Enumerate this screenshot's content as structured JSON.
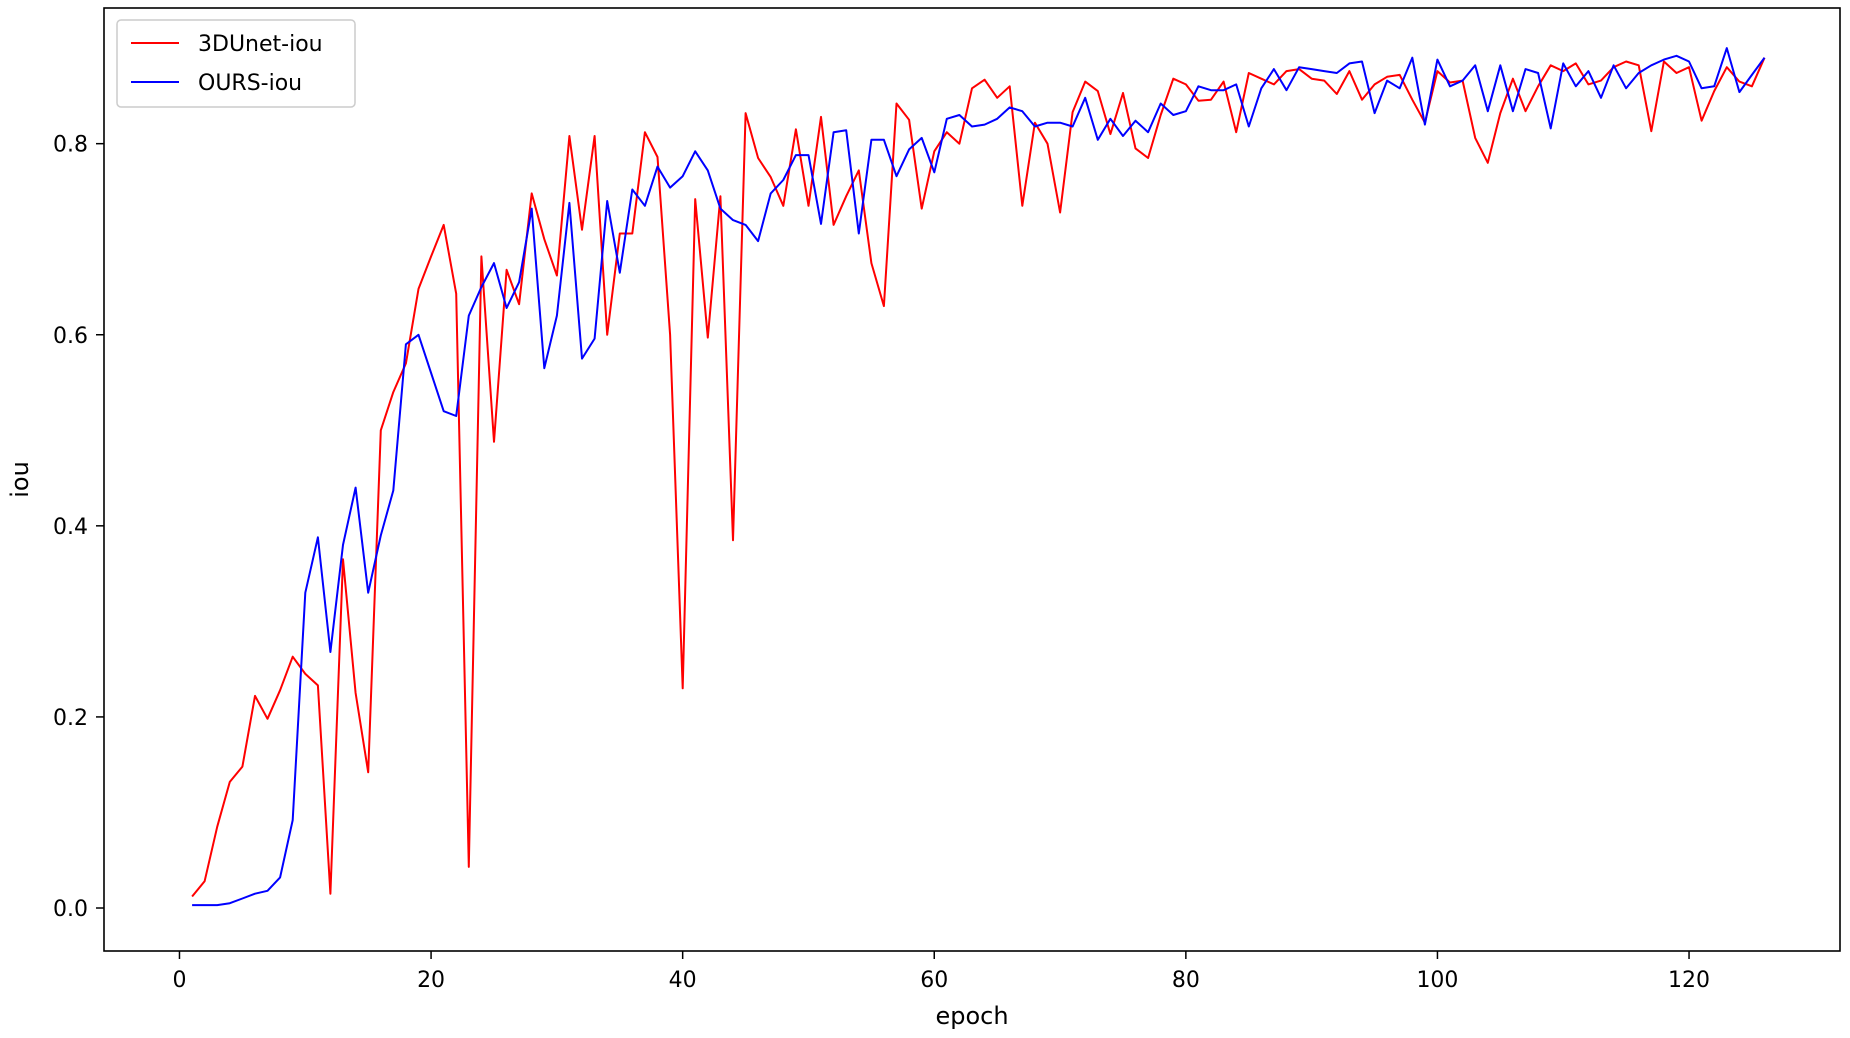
{
  "chart_data": {
    "type": "line",
    "title": "",
    "xlabel": "epoch",
    "ylabel": "iou",
    "xlim": [
      -6,
      132
    ],
    "ylim": [
      -0.045,
      0.942
    ],
    "xticks": [
      0,
      20,
      40,
      60,
      80,
      100,
      120
    ],
    "yticks": [
      0.0,
      0.2,
      0.4,
      0.6,
      0.8
    ],
    "ytick_labels": [
      "0.0",
      "0.2",
      "0.4",
      "0.6",
      "0.8"
    ],
    "grid": false,
    "legend_position": "top-left",
    "series": [
      {
        "name": "3DUnet-iou",
        "color": "#ff0000",
        "x": [
          1,
          2,
          3,
          4,
          5,
          6,
          7,
          8,
          9,
          10,
          11,
          12,
          13,
          14,
          15,
          16,
          17,
          18,
          19,
          20,
          21,
          22,
          23,
          24,
          25,
          26,
          27,
          28,
          29,
          30,
          31,
          32,
          33,
          34,
          35,
          36,
          37,
          38,
          39,
          40,
          41,
          42,
          43,
          44,
          45,
          46,
          47,
          48,
          49,
          50,
          51,
          52,
          53,
          54,
          55,
          56,
          57,
          58,
          59,
          60,
          61,
          62,
          63,
          64,
          65,
          66,
          67,
          68,
          69,
          70,
          71,
          72,
          73,
          74,
          75,
          76,
          77,
          78,
          79,
          80,
          81,
          82,
          83,
          84,
          85,
          86,
          87,
          88,
          89,
          90,
          91,
          92,
          93,
          94,
          95,
          96,
          97,
          98,
          99,
          100,
          101,
          102,
          103,
          104,
          105,
          106,
          107,
          108,
          109,
          110,
          111,
          112,
          113,
          114,
          115,
          116,
          117,
          118,
          119,
          120,
          121,
          122,
          123,
          124,
          125,
          126
        ],
        "y": [
          0.012,
          0.028,
          0.085,
          0.132,
          0.148,
          0.222,
          0.198,
          0.228,
          0.263,
          0.245,
          0.233,
          0.015,
          0.365,
          0.225,
          0.142,
          0.5,
          0.54,
          0.57,
          0.648,
          0.682,
          0.715,
          0.643,
          0.043,
          0.682,
          0.488,
          0.668,
          0.632,
          0.748,
          0.7,
          0.662,
          0.808,
          0.71,
          0.808,
          0.6,
          0.706,
          0.706,
          0.812,
          0.786,
          0.6,
          0.23,
          0.742,
          0.597,
          0.745,
          0.385,
          0.832,
          0.785,
          0.765,
          0.735,
          0.815,
          0.735,
          0.828,
          0.715,
          0.745,
          0.772,
          0.675,
          0.63,
          0.842,
          0.825,
          0.732,
          0.792,
          0.812,
          0.8,
          0.858,
          0.867,
          0.848,
          0.86,
          0.735,
          0.822,
          0.8,
          0.728,
          0.833,
          0.865,
          0.855,
          0.81,
          0.853,
          0.795,
          0.785,
          0.83,
          0.868,
          0.862,
          0.845,
          0.846,
          0.865,
          0.812,
          0.874,
          0.868,
          0.862,
          0.876,
          0.878,
          0.868,
          0.866,
          0.852,
          0.876,
          0.846,
          0.862,
          0.87,
          0.872,
          0.846,
          0.822,
          0.876,
          0.864,
          0.866,
          0.806,
          0.78,
          0.832,
          0.868,
          0.834,
          0.86,
          0.882,
          0.876,
          0.884,
          0.862,
          0.866,
          0.88,
          0.886,
          0.882,
          0.813,
          0.886,
          0.874,
          0.88,
          0.824,
          0.855,
          0.88,
          0.865,
          0.86,
          0.89
        ]
      },
      {
        "name": "OURS-iou",
        "color": "#0000ff",
        "x": [
          1,
          2,
          3,
          4,
          5,
          6,
          7,
          8,
          9,
          10,
          11,
          12,
          13,
          14,
          15,
          16,
          17,
          18,
          19,
          20,
          21,
          22,
          23,
          24,
          25,
          26,
          27,
          28,
          29,
          30,
          31,
          32,
          33,
          34,
          35,
          36,
          37,
          38,
          39,
          40,
          41,
          42,
          43,
          44,
          45,
          46,
          47,
          48,
          49,
          50,
          51,
          52,
          53,
          54,
          55,
          56,
          57,
          58,
          59,
          60,
          61,
          62,
          63,
          64,
          65,
          66,
          67,
          68,
          69,
          70,
          71,
          72,
          73,
          74,
          75,
          76,
          77,
          78,
          79,
          80,
          81,
          82,
          83,
          84,
          85,
          86,
          87,
          88,
          89,
          90,
          91,
          92,
          93,
          94,
          95,
          96,
          97,
          98,
          99,
          100,
          101,
          102,
          103,
          104,
          105,
          106,
          107,
          108,
          109,
          110,
          111,
          112,
          113,
          114,
          115,
          116,
          117,
          118,
          119,
          120,
          121,
          122,
          123,
          124,
          125,
          126
        ],
        "y": [
          0.003,
          0.003,
          0.003,
          0.005,
          0.01,
          0.015,
          0.018,
          0.032,
          0.092,
          0.33,
          0.388,
          0.268,
          0.38,
          0.44,
          0.33,
          0.39,
          0.437,
          0.59,
          0.6,
          0.56,
          0.52,
          0.515,
          0.62,
          0.65,
          0.675,
          0.628,
          0.655,
          0.732,
          0.565,
          0.62,
          0.738,
          0.575,
          0.596,
          0.74,
          0.665,
          0.752,
          0.735,
          0.776,
          0.754,
          0.766,
          0.792,
          0.772,
          0.732,
          0.72,
          0.715,
          0.698,
          0.748,
          0.762,
          0.788,
          0.788,
          0.716,
          0.812,
          0.814,
          0.706,
          0.804,
          0.804,
          0.766,
          0.794,
          0.806,
          0.77,
          0.826,
          0.83,
          0.818,
          0.82,
          0.826,
          0.838,
          0.834,
          0.818,
          0.822,
          0.822,
          0.818,
          0.848,
          0.804,
          0.826,
          0.808,
          0.824,
          0.812,
          0.842,
          0.83,
          0.834,
          0.86,
          0.856,
          0.856,
          0.862,
          0.818,
          0.858,
          0.878,
          0.856,
          0.88,
          0.878,
          0.876,
          0.874,
          0.884,
          0.886,
          0.832,
          0.866,
          0.858,
          0.89,
          0.82,
          0.888,
          0.86,
          0.866,
          0.882,
          0.834,
          0.882,
          0.834,
          0.878,
          0.874,
          0.816,
          0.884,
          0.86,
          0.876,
          0.848,
          0.882,
          0.858,
          0.874,
          0.882,
          0.888,
          0.892,
          0.886,
          0.858,
          0.86,
          0.9,
          0.854,
          0.872,
          0.89
        ]
      }
    ]
  }
}
